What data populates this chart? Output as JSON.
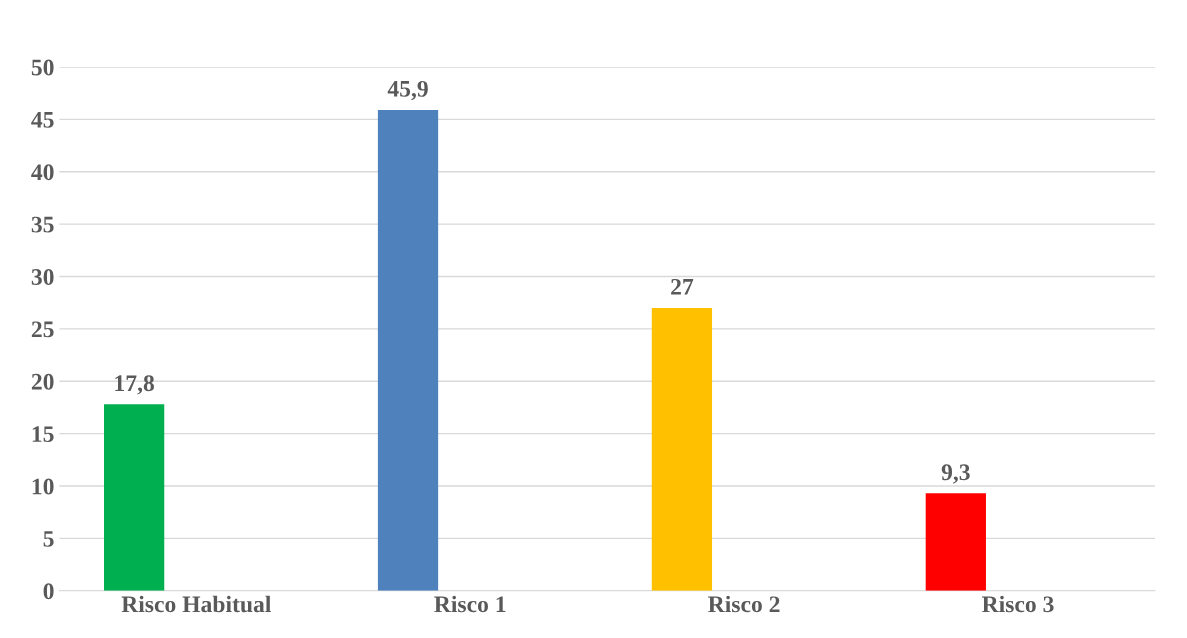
{
  "chart_data": {
    "type": "bar",
    "categories": [
      "Risco Habitual",
      "Risco 1",
      "Risco 2",
      "Risco 3"
    ],
    "values": [
      17.8,
      45.9,
      27,
      9.3
    ],
    "colors": [
      "#00b050",
      "#4f81bd",
      "#ffc000",
      "#ff0000"
    ],
    "value_labels": [
      "17,8",
      "45,9",
      "27",
      "9,3"
    ],
    "ylim": [
      0,
      50
    ],
    "yticks": [
      0,
      5,
      10,
      15,
      20,
      25,
      30,
      35,
      40,
      45,
      50
    ],
    "grid": "y",
    "legend": false
  }
}
